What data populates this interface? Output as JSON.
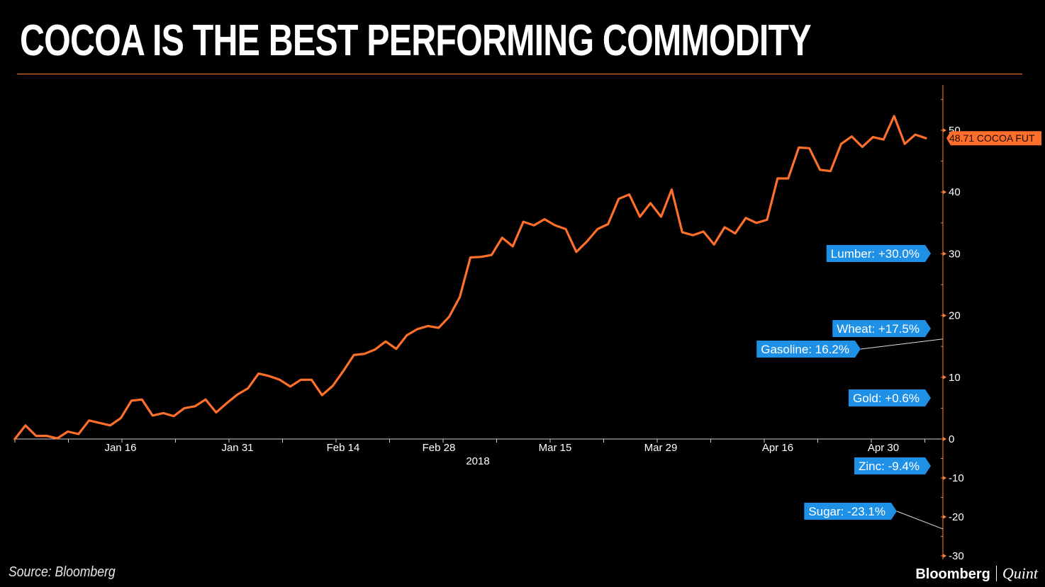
{
  "title": "COCOA IS THE BEST PERFORMING COMMODITY",
  "source": "Source: Bloomberg",
  "brand": {
    "name": "Bloomberg",
    "partner": "Quint"
  },
  "colors": {
    "background": "#000000",
    "series": "#ff6f2c",
    "callout": "#1e90e6",
    "axis": "#ff7f33",
    "text": "#ffffff"
  },
  "chart_data": {
    "type": "line",
    "title": "COCOA IS THE BEST PERFORMING COMMODITY",
    "xlabel": "2018",
    "ylabel": "",
    "x_ticks": [
      "Jan 16",
      "Jan 31",
      "Feb 14",
      "Feb 28",
      "Mar 15",
      "Mar 29",
      "Apr 16",
      "Apr 30"
    ],
    "ylim": [
      -30,
      55
    ],
    "y_ticks": [
      -30,
      -20,
      -10,
      0,
      10,
      20,
      30,
      40,
      50
    ],
    "grid": false,
    "y_axis_side": "right",
    "series": [
      {
        "name": "COCOA FUT",
        "last_value_label": "48.71",
        "values": [
          0,
          2.2,
          0.5,
          0.5,
          0.1,
          1.2,
          0.8,
          3.0,
          2.6,
          2.2,
          3.4,
          6.2,
          6.4,
          3.8,
          4.2,
          3.7,
          5.0,
          5.3,
          6.4,
          4.3,
          5.8,
          7.2,
          8.2,
          10.6,
          10.2,
          9.6,
          8.5,
          9.6,
          9.6,
          7.1,
          8.6,
          11.0,
          13.6,
          13.8,
          14.5,
          15.8,
          14.6,
          16.8,
          17.8,
          18.3,
          18.0,
          19.8,
          23.0,
          29.4,
          29.5,
          29.8,
          32.6,
          31.2,
          35.2,
          34.6,
          35.6,
          34.6,
          34.0,
          30.3,
          32.0,
          34.0,
          34.8,
          38.9,
          39.6,
          36.0,
          38.2,
          36.0,
          40.4,
          33.5,
          33.0,
          33.6,
          31.5,
          34.3,
          33.3,
          35.8,
          35.0,
          35.5,
          42.2,
          42.2,
          47.2,
          47.1,
          43.6,
          43.4,
          47.8,
          49.0,
          47.3,
          48.9,
          48.5,
          52.3,
          47.8,
          49.3,
          48.71
        ]
      }
    ],
    "annotations": [
      {
        "label": "48.71 COCOA FUT",
        "value": 48.71,
        "style": "orange"
      },
      {
        "label": "Lumber: +30.0%",
        "value": 30.0,
        "style": "blue"
      },
      {
        "label": "Wheat: +17.5%",
        "value": 17.5,
        "style": "blue"
      },
      {
        "label": "Gasoline: 16.2%",
        "value": 16.2,
        "style": "blue"
      },
      {
        "label": "Gold: +0.6%",
        "value": 0.6,
        "style": "blue"
      },
      {
        "label": "Zinc: -9.4%",
        "value": -9.4,
        "style": "blue"
      },
      {
        "label": "Sugar: -23.1%",
        "value": -23.1,
        "style": "blue"
      }
    ]
  }
}
